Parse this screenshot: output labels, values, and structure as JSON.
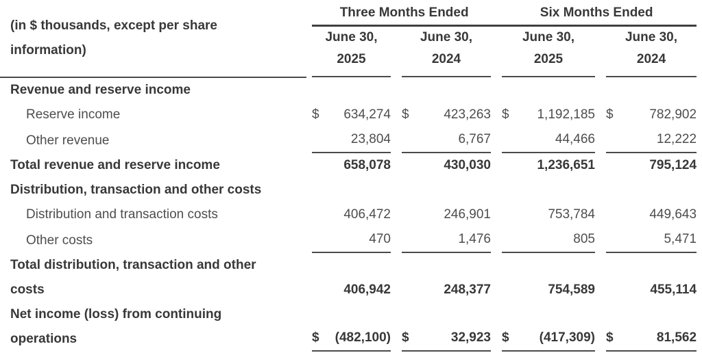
{
  "meta": {
    "currency_symbol": "$"
  },
  "table": {
    "corner_label": "(in $ thousands, except per share information)",
    "corner_lines": [
      "(in $ thousands, except per share",
      "information)"
    ],
    "groups": [
      {
        "label": "Three Months Ended"
      },
      {
        "label": "Six Months Ended"
      }
    ],
    "columns": [
      {
        "group": "Three Months Ended",
        "date": "June 30,",
        "year": "2025"
      },
      {
        "group": "Three Months Ended",
        "date": "June 30,",
        "year": "2024"
      },
      {
        "group": "Six Months Ended",
        "date": "June 30,",
        "year": "2025"
      },
      {
        "group": "Six Months Ended",
        "date": "June 30,",
        "year": "2024"
      }
    ],
    "rows": [
      {
        "type": "section",
        "label": "Revenue and reserve income",
        "values": [
          "",
          "",
          "",
          ""
        ]
      },
      {
        "type": "item",
        "label": "Reserve income",
        "dollar": true,
        "values": [
          "634,274",
          "423,263",
          "1,192,185",
          "782,902"
        ]
      },
      {
        "type": "item",
        "label": "Other revenue",
        "underline": true,
        "values": [
          "23,804",
          "6,767",
          "44,466",
          "12,222"
        ]
      },
      {
        "type": "total",
        "label": "Total revenue and reserve income",
        "values": [
          "658,078",
          "430,030",
          "1,236,651",
          "795,124"
        ]
      },
      {
        "type": "section",
        "label": "Distribution, transaction and other costs",
        "values": [
          "",
          "",
          "",
          ""
        ]
      },
      {
        "type": "item",
        "label": "Distribution and transaction costs",
        "values": [
          "406,472",
          "246,901",
          "753,784",
          "449,643"
        ]
      },
      {
        "type": "item",
        "label": "Other costs",
        "underline": true,
        "values": [
          "470",
          "1,476",
          "805",
          "5,471"
        ]
      },
      {
        "type": "total",
        "label": "Total distribution, transaction and other costs",
        "label_lines": [
          "Total distribution, transaction and other",
          "costs"
        ],
        "values": [
          "406,942",
          "248,377",
          "754,589",
          "455,114"
        ]
      },
      {
        "type": "total",
        "label": "Net income (loss) from continuing operations",
        "label_lines": [
          "Net income (loss) from continuing",
          "operations"
        ],
        "dollar": true,
        "underline": true,
        "values": [
          "(482,100)",
          "32,923",
          "(417,309)",
          "81,562"
        ]
      }
    ]
  },
  "colors": {
    "text_bold": "#383838",
    "text_regular": "#4d4d4d",
    "rule": "#4a4a4a"
  }
}
